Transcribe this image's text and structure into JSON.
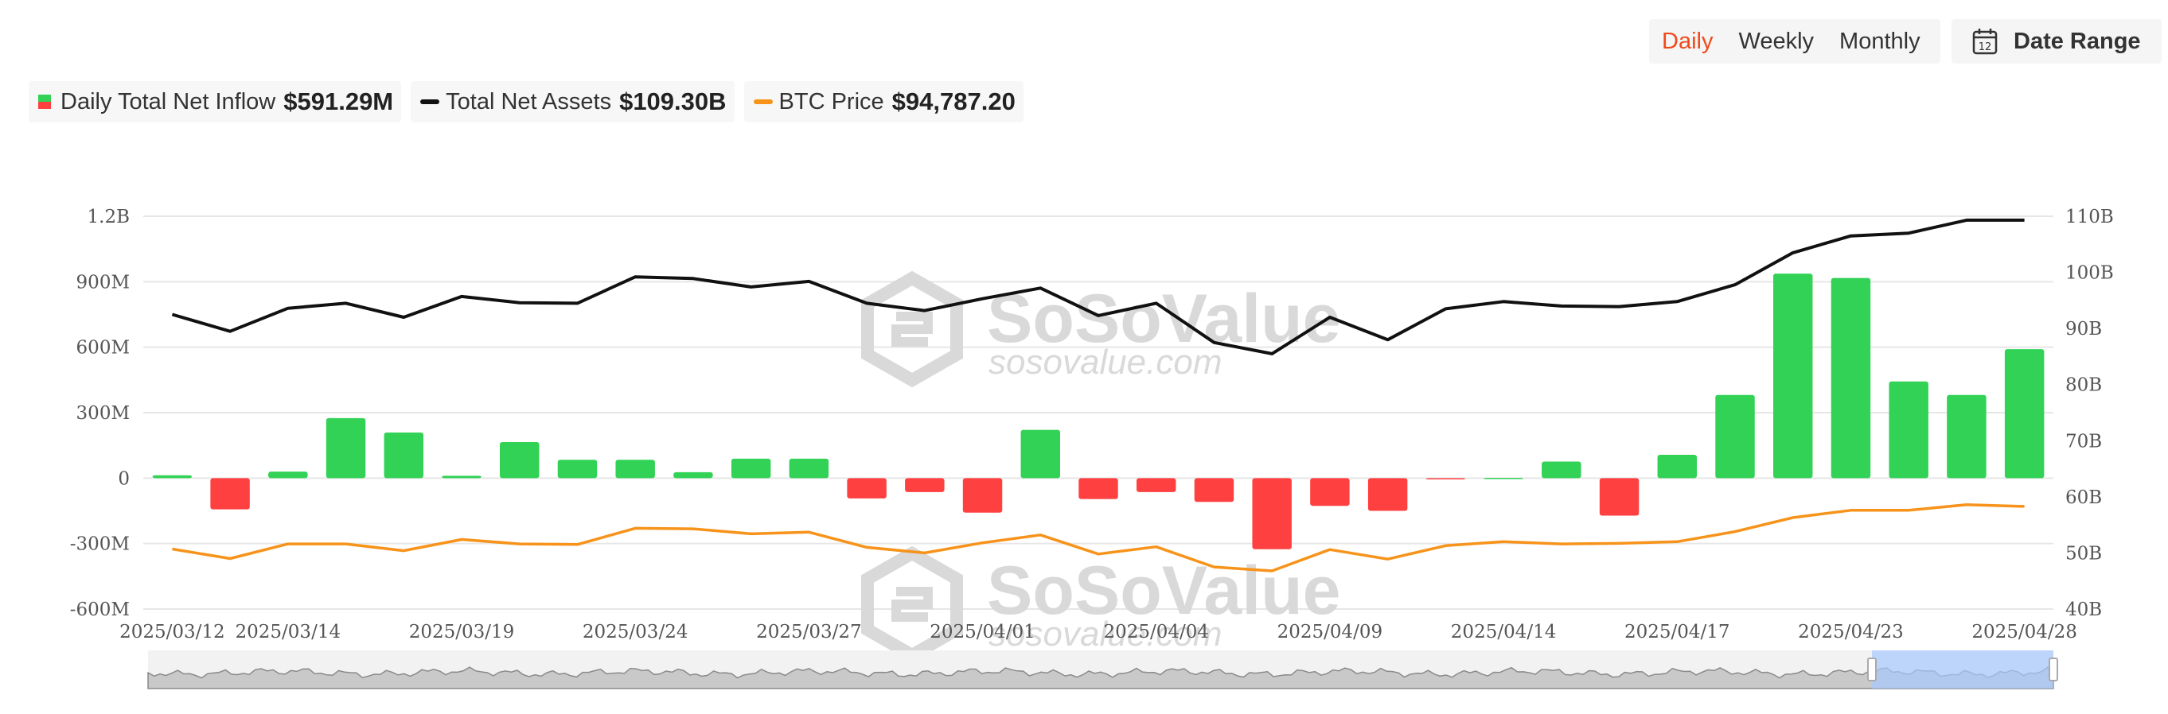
{
  "controls": {
    "periods": [
      "Daily",
      "Weekly",
      "Monthly"
    ],
    "active_period": "Daily",
    "date_range_label": "Date Range"
  },
  "legend": [
    {
      "name": "Daily Total Net Inflow",
      "value": "$591.29M"
    },
    {
      "name": "Total Net Assets",
      "value": "$109.30B"
    },
    {
      "name": "BTC Price",
      "value": "$94,787.20"
    }
  ],
  "watermark": {
    "brand": "SoSoValue",
    "site": "sosovalue.com"
  },
  "colors": {
    "positive": "#32d257",
    "negative": "#ff4040",
    "net_assets": "#111111",
    "btc_price": "#f7931a",
    "active": "#f04a1c"
  },
  "chart_data": {
    "type": "bar",
    "x": [
      "2025/03/12",
      "2025/03/13",
      "2025/03/14",
      "2025/03/17",
      "2025/03/18",
      "2025/03/19",
      "2025/03/20",
      "2025/03/21",
      "2025/03/24",
      "2025/03/25",
      "2025/03/26",
      "2025/03/27",
      "2025/03/28",
      "2025/03/31",
      "2025/04/01",
      "2025/04/02",
      "2025/04/03",
      "2025/04/04",
      "2025/04/07",
      "2025/04/08",
      "2025/04/09",
      "2025/04/10",
      "2025/04/11",
      "2025/04/14",
      "2025/04/15",
      "2025/04/16",
      "2025/04/17",
      "2025/04/21",
      "2025/04/22",
      "2025/04/23",
      "2025/04/24",
      "2025/04/25",
      "2025/04/28"
    ],
    "x_tick_labels": [
      "2025/03/12",
      "2025/03/14",
      "2025/03/19",
      "2025/03/24",
      "2025/03/27",
      "2025/04/01",
      "2025/04/04",
      "2025/04/09",
      "2025/04/14",
      "2025/04/17",
      "2025/04/23",
      "2025/04/28"
    ],
    "series": [
      {
        "name": "Daily Total Net Inflow",
        "type": "bar",
        "axis": "left",
        "values": [
          13,
          -143,
          30,
          275,
          209,
          11,
          165,
          84,
          84,
          27,
          89,
          89,
          -93,
          -64,
          -158,
          221,
          -96,
          -64,
          -109,
          -326,
          -127,
          -150,
          -2,
          1,
          76,
          -172,
          107,
          381,
          937,
          917,
          443,
          381,
          591
        ]
      },
      {
        "name": "Total Net Assets",
        "type": "line",
        "axis": "right",
        "values": [
          92.5,
          89.5,
          93.6,
          94.5,
          92.0,
          95.7,
          94.6,
          94.5,
          99.2,
          98.9,
          97.4,
          98.4,
          94.5,
          93.2,
          95.3,
          97.2,
          92.3,
          94.5,
          87.5,
          85.5,
          92.0,
          88.0,
          93.5,
          94.8,
          94.0,
          93.9,
          94.8,
          97.8,
          103.5,
          106.5,
          107.0,
          109.3,
          109.3
        ]
      },
      {
        "name": "BTC Price",
        "type": "line",
        "axis": "right",
        "values": [
          50.7,
          49.0,
          51.6,
          51.6,
          50.4,
          52.4,
          51.6,
          51.5,
          54.4,
          54.3,
          53.4,
          53.7,
          51.0,
          50.0,
          51.8,
          53.2,
          49.8,
          51.1,
          47.5,
          46.8,
          50.6,
          48.9,
          51.3,
          52.0,
          51.6,
          51.7,
          52.0,
          53.8,
          56.3,
          57.6,
          57.6,
          58.6,
          58.3
        ]
      }
    ],
    "y_left": {
      "ticks": [
        "-600M",
        "-300M",
        "0",
        "300M",
        "600M",
        "900M",
        "1.2B"
      ],
      "min": -600,
      "max": 1200,
      "unit": "M"
    },
    "y_right": {
      "ticks": [
        "40B",
        "50B",
        "60B",
        "70B",
        "80B",
        "90B",
        "100B",
        "110B"
      ],
      "min": 40,
      "max": 110
    },
    "grid": true,
    "legend_position": "top-left"
  }
}
